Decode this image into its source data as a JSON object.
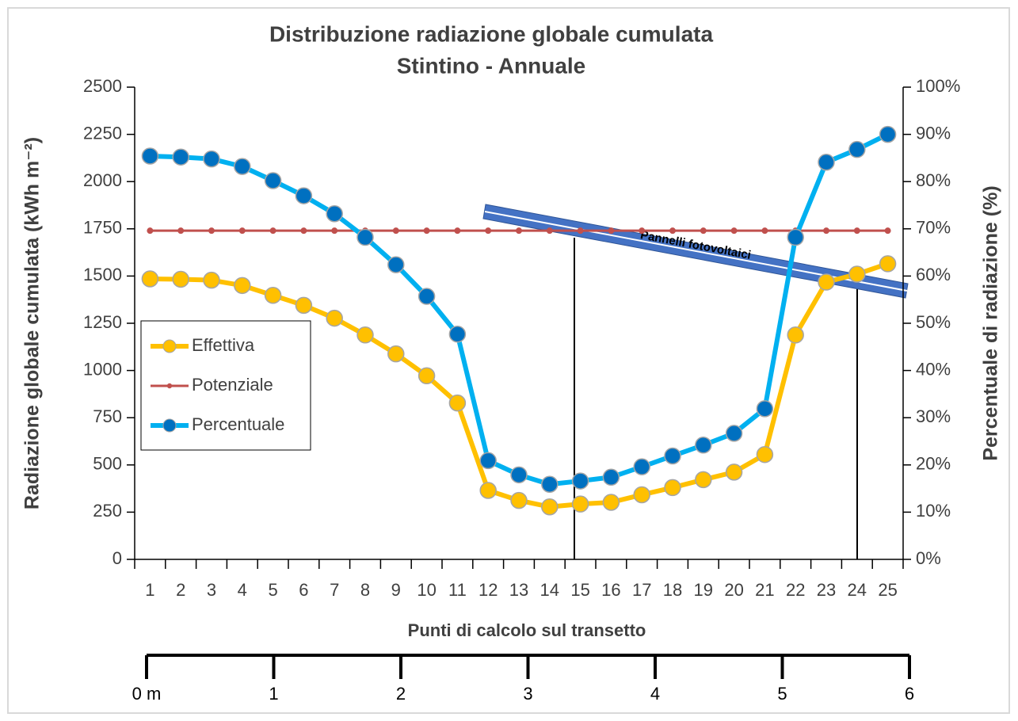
{
  "chart_data": {
    "type": "line",
    "title": "Distribuzione radiazione globale cumulata",
    "subtitle": "Stintino - Annuale",
    "x_label": "Punti di calcolo sul transetto",
    "y_label": "Radiazione globale cumulata (kWh m⁻²)",
    "y2_label": "Percentuale di radiazione (%)",
    "annotation": "Pannelli fotovoltaici",
    "categories": [
      "1",
      "2",
      "3",
      "4",
      "5",
      "6",
      "7",
      "8",
      "9",
      "10",
      "11",
      "12",
      "13",
      "14",
      "15",
      "16",
      "17",
      "18",
      "19",
      "20",
      "21",
      "22",
      "23",
      "24",
      "25"
    ],
    "series": [
      {
        "name": "Effettiva",
        "color": "#ffc000",
        "marker_color": "#ffc000",
        "marker_size": 10,
        "values": [
          1485,
          1483,
          1478,
          1450,
          1398,
          1345,
          1277,
          1188,
          1088,
          972,
          828,
          365,
          312,
          278,
          293,
          302,
          342,
          380,
          422,
          462,
          555,
          1188,
          1468,
          1510,
          1565
        ]
      },
      {
        "name": "Potenziale",
        "color": "#c0504d",
        "marker_color": "#c0504d",
        "marker_size": 4,
        "values": [
          1740,
          1740,
          1740,
          1740,
          1740,
          1740,
          1740,
          1740,
          1740,
          1740,
          1740,
          1740,
          1740,
          1740,
          1740,
          1740,
          1740,
          1740,
          1740,
          1740,
          1740,
          1740,
          1740,
          1740,
          1740
        ]
      },
      {
        "name": "Percentuale",
        "color": "#00b0f0",
        "marker_color": "#0070c0",
        "marker_size": 10,
        "axis": "y2",
        "values": [
          85.4,
          85.2,
          84.8,
          83.2,
          80.2,
          77,
          73.2,
          68.2,
          62.4,
          55.7,
          47.7,
          20.9,
          17.9,
          15.9,
          16.6,
          17.4,
          19.6,
          21.9,
          24.2,
          26.7,
          31.9,
          68.2,
          84.1,
          86.8,
          90
        ]
      }
    ],
    "ylim": [
      0,
      2500
    ],
    "yticks": [
      0,
      250,
      500,
      750,
      1000,
      1250,
      1500,
      1750,
      2000,
      2250,
      2500
    ],
    "y2lim": [
      0,
      100
    ],
    "y2ticks": [
      {
        "value": 0,
        "label": "0%"
      },
      {
        "value": 10,
        "label": "10%"
      },
      {
        "value": 20,
        "label": "20%"
      },
      {
        "value": 30,
        "label": "30%"
      },
      {
        "value": 40,
        "label": "40%"
      },
      {
        "value": 50,
        "label": "50%"
      },
      {
        "value": 60,
        "label": "60%"
      },
      {
        "value": 70,
        "label": "70%"
      },
      {
        "value": 80,
        "label": "80%"
      },
      {
        "value": 90,
        "label": "90%"
      },
      {
        "value": 100,
        "label": "100%"
      }
    ],
    "distance_axis": {
      "xlim": [
        0,
        6
      ],
      "xticks": [
        {
          "value": 0,
          "label": "0 m"
        },
        1,
        2,
        3,
        4,
        5,
        6
      ]
    },
    "grid": false,
    "legend": "left"
  }
}
